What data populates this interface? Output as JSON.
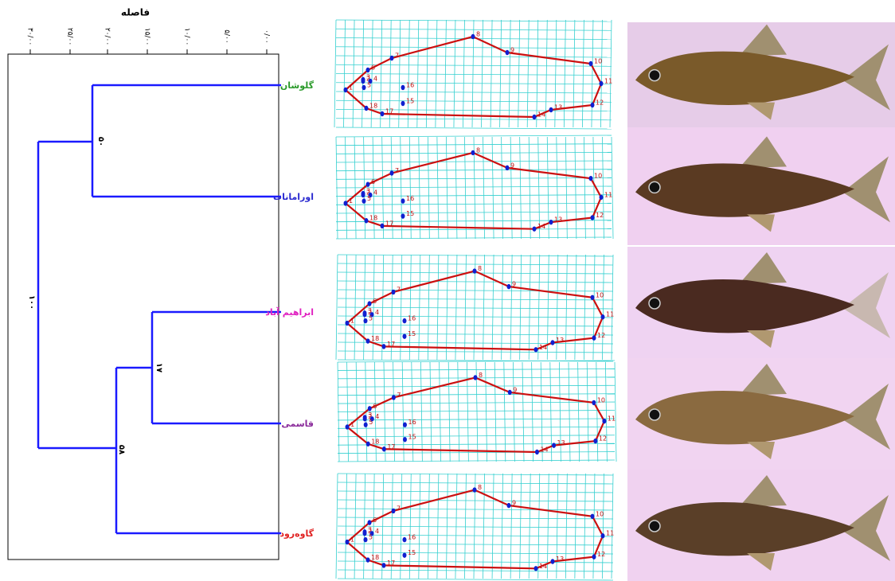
{
  "dendrogram": {
    "axis_title": "فاصله",
    "ticks": [
      "۳۰/۰۰",
      "۲۵/۰۰",
      "۲۰/۰۰",
      "۱۵/۰۰",
      "۱۰/۰۰",
      "۵/۰۰",
      "۰/۰۰"
    ],
    "leaves": [
      "گلوشان",
      "اورامانات",
      "ابراهیم آباد",
      "قاسمی",
      "گاوه‌رود"
    ],
    "node_labels": [
      "۵۰",
      "۱۷",
      "۵۸",
      "۱۰۰"
    ]
  },
  "grids": [
    {
      "landmarks": [
        "1",
        "2",
        "3",
        "4",
        "5",
        "6",
        "7",
        "8",
        "9",
        "10",
        "11",
        "12",
        "13",
        "14",
        "15",
        "16",
        "17",
        "18"
      ]
    },
    {
      "landmarks": [
        "1",
        "2",
        "3",
        "4",
        "5",
        "6",
        "7",
        "8",
        "9",
        "10",
        "11",
        "12",
        "13",
        "14",
        "15",
        "16",
        "17",
        "18"
      ]
    },
    {
      "landmarks": [
        "1",
        "2",
        "3",
        "4",
        "5",
        "6",
        "7",
        "8",
        "9",
        "10",
        "11",
        "12",
        "13",
        "14",
        "15",
        "16",
        "17",
        "18"
      ]
    },
    {
      "landmarks": [
        "1",
        "2",
        "3",
        "4",
        "5",
        "6",
        "7",
        "8",
        "9",
        "10",
        "11",
        "12",
        "13",
        "14",
        "15",
        "16",
        "17",
        "18"
      ]
    },
    {
      "landmarks": [
        "1",
        "2",
        "3",
        "4",
        "5",
        "6",
        "7",
        "8",
        "9",
        "10",
        "11",
        "12",
        "13",
        "14",
        "15",
        "16",
        "17",
        "18"
      ]
    }
  ]
}
